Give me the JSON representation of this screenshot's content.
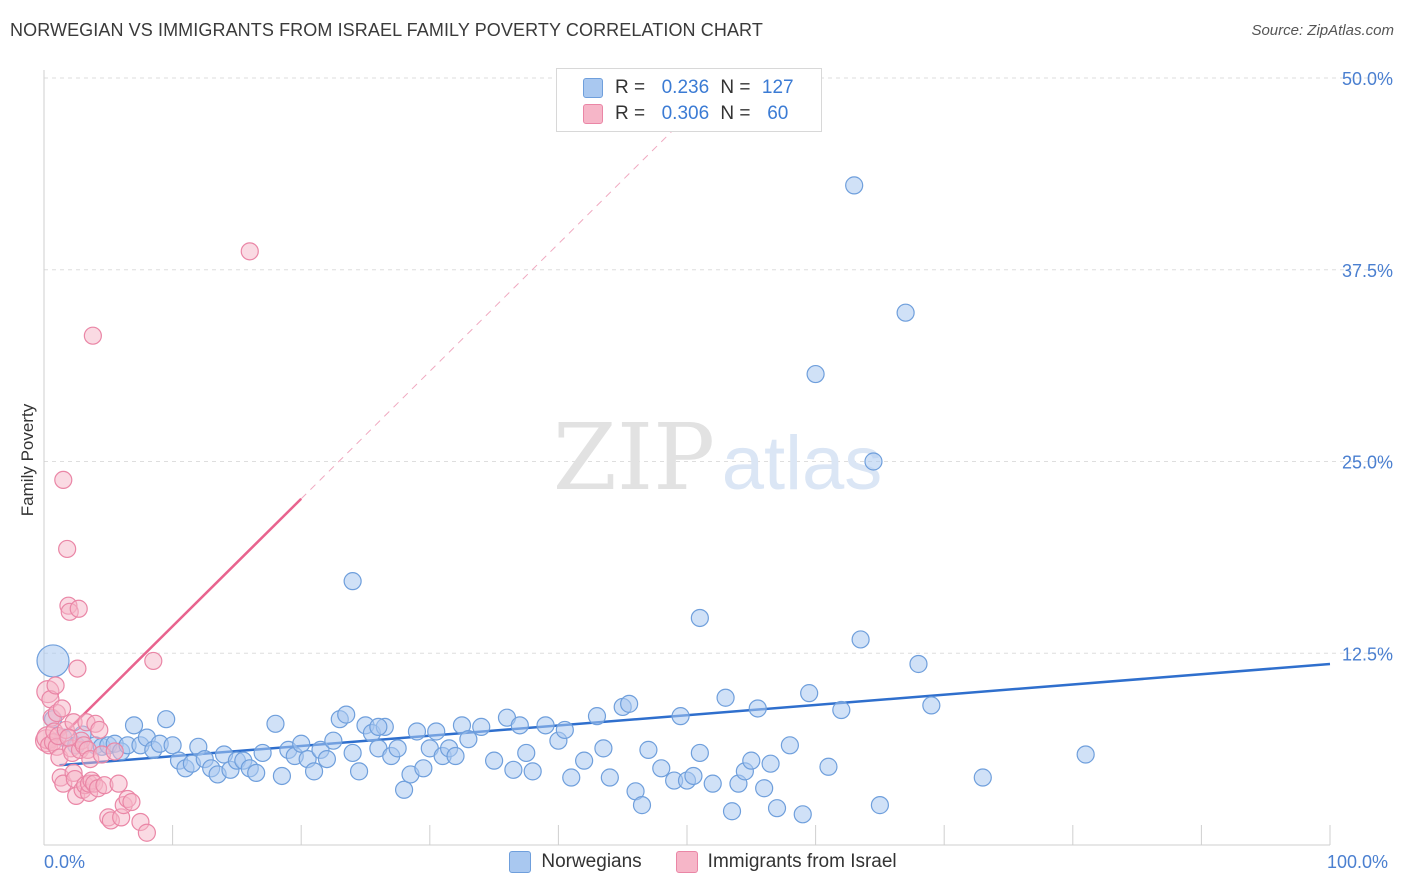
{
  "title": "NORWEGIAN VS IMMIGRANTS FROM ISRAEL FAMILY POVERTY CORRELATION CHART",
  "source": "Source: ZipAtlas.com",
  "watermark": {
    "zip": "ZIP",
    "atlas": "atlas"
  },
  "colors": {
    "blue_fill": "#a9c8f0",
    "blue_stroke": "#6f9fdc",
    "blue_line": "#2f6fcd",
    "pink_fill": "#f6b6c8",
    "pink_stroke": "#ea86a6",
    "pink_line": "#e8638e",
    "tick_label": "#4a7fd0",
    "grid": "#dedede"
  },
  "legend": {
    "rows": [
      {
        "r_label": "R =",
        "r_value": "0.236",
        "n_label": "N =",
        "n_value": "127",
        "color": "#a9c8f0",
        "border": "#6f9fdc"
      },
      {
        "r_label": "R =",
        "r_value": "0.306",
        "n_label": "N =",
        "n_value": "60",
        "color": "#f6b6c8",
        "border": "#ea86a6"
      }
    ]
  },
  "chart_data": {
    "type": "scatter",
    "title": "NORWEGIAN VS IMMIGRANTS FROM ISRAEL FAMILY POVERTY CORRELATION CHART",
    "xlabel": "",
    "ylabel": "Family Poverty",
    "xlim": [
      0,
      100
    ],
    "ylim": [
      0,
      50
    ],
    "x_tick_labels": {
      "left": "0.0%",
      "right": "100.0%"
    },
    "y_ticks": [
      {
        "value": 12.5,
        "label": "12.5%"
      },
      {
        "value": 25.0,
        "label": "25.0%"
      },
      {
        "value": 37.5,
        "label": "37.5%"
      },
      {
        "value": 50.0,
        "label": "50.0%"
      }
    ],
    "grid": true,
    "series": [
      {
        "name": "Norwegians",
        "r": 0.236,
        "n": 127,
        "trend": {
          "x0": 1.2,
          "y0": 5.2,
          "x1": 100,
          "y1": 11.8,
          "solid_until": 100
        },
        "points": [
          [
            0.7,
            12.0
          ],
          [
            0.7,
            8.2
          ],
          [
            1.5,
            7.0
          ],
          [
            2.5,
            6.5
          ],
          [
            3.0,
            7.2
          ],
          [
            4.0,
            6.5
          ],
          [
            4.5,
            6.4
          ],
          [
            5.0,
            6.5
          ],
          [
            5.5,
            6.6
          ],
          [
            6.0,
            6.1
          ],
          [
            6.5,
            6.5
          ],
          [
            7.0,
            7.8
          ],
          [
            7.5,
            6.5
          ],
          [
            8.0,
            7.0
          ],
          [
            8.5,
            6.2
          ],
          [
            9.0,
            6.6
          ],
          [
            9.5,
            8.2
          ],
          [
            10.0,
            6.5
          ],
          [
            10.5,
            5.5
          ],
          [
            11.0,
            5.0
          ],
          [
            11.5,
            5.3
          ],
          [
            12.0,
            6.4
          ],
          [
            12.5,
            5.6
          ],
          [
            13.0,
            5.0
          ],
          [
            13.5,
            4.6
          ],
          [
            14.0,
            5.9
          ],
          [
            14.5,
            4.9
          ],
          [
            15.0,
            5.5
          ],
          [
            15.5,
            5.5
          ],
          [
            16.0,
            5.0
          ],
          [
            16.5,
            4.7
          ],
          [
            17.0,
            6.0
          ],
          [
            18.0,
            7.9
          ],
          [
            18.5,
            4.5
          ],
          [
            19.0,
            6.2
          ],
          [
            19.5,
            5.8
          ],
          [
            20.0,
            6.6
          ],
          [
            20.5,
            5.6
          ],
          [
            21.0,
            4.8
          ],
          [
            21.5,
            6.2
          ],
          [
            22.0,
            5.6
          ],
          [
            22.5,
            6.8
          ],
          [
            23.0,
            8.2
          ],
          [
            23.5,
            8.5
          ],
          [
            24.0,
            6.0
          ],
          [
            24.5,
            4.8
          ],
          [
            25.0,
            7.8
          ],
          [
            25.5,
            7.3
          ],
          [
            26.0,
            6.3
          ],
          [
            26.5,
            7.7
          ],
          [
            27.0,
            5.8
          ],
          [
            27.5,
            6.3
          ],
          [
            28.0,
            3.6
          ],
          [
            28.5,
            4.6
          ],
          [
            29.0,
            7.4
          ],
          [
            29.5,
            5.0
          ],
          [
            30.0,
            6.3
          ],
          [
            30.5,
            7.4
          ],
          [
            31.0,
            5.8
          ],
          [
            31.5,
            6.3
          ],
          [
            32.0,
            5.8
          ],
          [
            32.5,
            7.8
          ],
          [
            33.0,
            6.9
          ],
          [
            34.0,
            7.7
          ],
          [
            35.0,
            5.5
          ],
          [
            36.0,
            8.3
          ],
          [
            36.5,
            4.9
          ],
          [
            37.0,
            7.8
          ],
          [
            37.5,
            6.0
          ],
          [
            38.0,
            4.8
          ],
          [
            39.0,
            7.8
          ],
          [
            40.0,
            6.8
          ],
          [
            40.5,
            7.5
          ],
          [
            41.0,
            4.4
          ],
          [
            42.0,
            5.5
          ],
          [
            43.0,
            8.4
          ],
          [
            43.5,
            6.3
          ],
          [
            44.0,
            4.4
          ],
          [
            45.0,
            9.0
          ],
          [
            45.5,
            9.2
          ],
          [
            46.0,
            3.5
          ],
          [
            46.5,
            2.6
          ],
          [
            47.0,
            6.2
          ],
          [
            48.0,
            5.0
          ],
          [
            49.0,
            4.2
          ],
          [
            49.5,
            8.4
          ],
          [
            50.0,
            4.2
          ],
          [
            50.5,
            4.5
          ],
          [
            51.0,
            6.0
          ],
          [
            52.0,
            4.0
          ],
          [
            53.0,
            9.6
          ],
          [
            53.5,
            2.2
          ],
          [
            54.0,
            4.0
          ],
          [
            54.5,
            4.8
          ],
          [
            55.0,
            5.5
          ],
          [
            55.5,
            8.9
          ],
          [
            56.0,
            3.7
          ],
          [
            56.5,
            5.3
          ],
          [
            57.0,
            2.4
          ],
          [
            58.0,
            6.5
          ],
          [
            59.0,
            2.0
          ],
          [
            59.5,
            9.9
          ],
          [
            60.0,
            30.7
          ],
          [
            61.0,
            5.1
          ],
          [
            62.0,
            8.8
          ],
          [
            63.0,
            43.0
          ],
          [
            63.5,
            13.4
          ],
          [
            64.5,
            25.0
          ],
          [
            65.0,
            2.6
          ],
          [
            67.0,
            34.7
          ],
          [
            68.0,
            11.8
          ],
          [
            69.0,
            9.1
          ],
          [
            73.0,
            4.4
          ],
          [
            81.0,
            5.9
          ],
          [
            24.0,
            17.2
          ],
          [
            51.0,
            14.8
          ],
          [
            26.0,
            7.7
          ]
        ]
      },
      {
        "name": "Immigrants from Israel",
        "r": 0.306,
        "n": 60,
        "trend": {
          "x0": 0.3,
          "y0": 6.2,
          "x1": 50,
          "y1": 47.5,
          "solid_until": 20
        },
        "points": [
          [
            0.2,
            6.8
          ],
          [
            0.3,
            7.0
          ],
          [
            0.3,
            10.0
          ],
          [
            0.4,
            6.5
          ],
          [
            0.5,
            9.5
          ],
          [
            0.6,
            8.3
          ],
          [
            0.7,
            6.7
          ],
          [
            0.8,
            7.4
          ],
          [
            0.9,
            10.4
          ],
          [
            1.0,
            8.6
          ],
          [
            1.0,
            6.4
          ],
          [
            1.1,
            7.1
          ],
          [
            1.2,
            5.7
          ],
          [
            1.3,
            4.4
          ],
          [
            1.4,
            8.9
          ],
          [
            1.5,
            4.0
          ],
          [
            1.5,
            23.8
          ],
          [
            1.7,
            7.5
          ],
          [
            1.8,
            19.3
          ],
          [
            1.9,
            15.6
          ],
          [
            2.0,
            15.2
          ],
          [
            2.1,
            6.3
          ],
          [
            2.2,
            6.0
          ],
          [
            2.3,
            8.0
          ],
          [
            2.3,
            4.7
          ],
          [
            2.4,
            4.3
          ],
          [
            2.5,
            3.2
          ],
          [
            2.6,
            11.5
          ],
          [
            2.7,
            15.4
          ],
          [
            2.8,
            6.2
          ],
          [
            2.9,
            6.8
          ],
          [
            3.0,
            3.6
          ],
          [
            3.1,
            6.5
          ],
          [
            3.2,
            3.9
          ],
          [
            3.3,
            8.0
          ],
          [
            3.4,
            6.2
          ],
          [
            3.5,
            3.4
          ],
          [
            3.5,
            4.0
          ],
          [
            3.6,
            5.6
          ],
          [
            3.7,
            4.2
          ],
          [
            3.8,
            33.2
          ],
          [
            3.9,
            4.0
          ],
          [
            4.0,
            7.9
          ],
          [
            4.2,
            3.7
          ],
          [
            4.3,
            7.5
          ],
          [
            4.5,
            5.9
          ],
          [
            4.7,
            3.9
          ],
          [
            5.0,
            1.8
          ],
          [
            5.2,
            1.6
          ],
          [
            5.5,
            6.1
          ],
          [
            5.8,
            4.0
          ],
          [
            6.0,
            1.8
          ],
          [
            6.2,
            2.6
          ],
          [
            6.5,
            3.0
          ],
          [
            6.8,
            2.8
          ],
          [
            7.5,
            1.5
          ],
          [
            8.0,
            0.8
          ],
          [
            8.5,
            12.0
          ],
          [
            16.0,
            38.7
          ],
          [
            1.9,
            7.0
          ]
        ]
      }
    ]
  },
  "legend_bottom": [
    {
      "label": "Norwegians",
      "color": "#a9c8f0",
      "border": "#6f9fdc"
    },
    {
      "label": "Immigrants from Israel",
      "color": "#f6b6c8",
      "border": "#ea86a6"
    }
  ]
}
